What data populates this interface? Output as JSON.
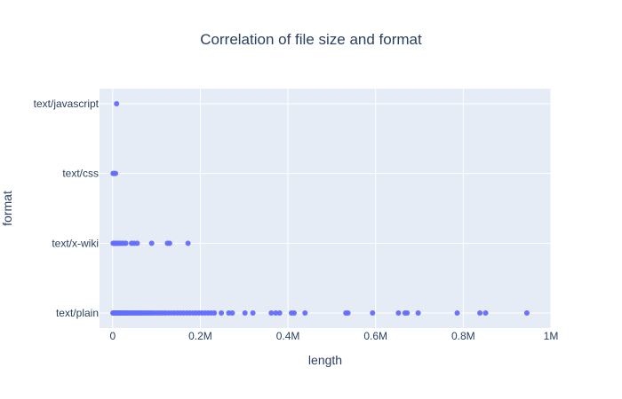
{
  "chart_data": {
    "type": "scatter",
    "title": "Correlation of file size and format",
    "xlabel": "length",
    "ylabel": "format",
    "categories": [
      "text/plain",
      "text/x-wiki",
      "text/css",
      "text/javascript"
    ],
    "xlim": [
      -30000,
      1000000
    ],
    "xticks": [
      {
        "value": 0,
        "label": "0"
      },
      {
        "value": 200000,
        "label": "0.2M"
      },
      {
        "value": 400000,
        "label": "0.4M"
      },
      {
        "value": 600000,
        "label": "0.6M"
      },
      {
        "value": 800000,
        "label": "0.8M"
      },
      {
        "value": 1000000,
        "label": "1M"
      }
    ],
    "grid": true,
    "colors": {
      "marker": "#636efa",
      "plot_bg": "#e5ecf6",
      "grid": "#ffffff",
      "text": "#2a3f5f"
    },
    "series": [
      {
        "points": [
          {
            "x": 700,
            "y": "text/plain"
          },
          {
            "x": 1500,
            "y": "text/plain"
          },
          {
            "x": 2500,
            "y": "text/plain"
          },
          {
            "x": 3500,
            "y": "text/plain"
          },
          {
            "x": 4500,
            "y": "text/plain"
          },
          {
            "x": 5500,
            "y": "text/plain"
          },
          {
            "x": 7000,
            "y": "text/plain"
          },
          {
            "x": 8500,
            "y": "text/plain"
          },
          {
            "x": 10000,
            "y": "text/plain"
          },
          {
            "x": 12000,
            "y": "text/plain"
          },
          {
            "x": 14000,
            "y": "text/plain"
          },
          {
            "x": 16000,
            "y": "text/plain"
          },
          {
            "x": 18000,
            "y": "text/plain"
          },
          {
            "x": 20000,
            "y": "text/plain"
          },
          {
            "x": 23000,
            "y": "text/plain"
          },
          {
            "x": 26000,
            "y": "text/plain"
          },
          {
            "x": 29000,
            "y": "text/plain"
          },
          {
            "x": 32000,
            "y": "text/plain"
          },
          {
            "x": 35000,
            "y": "text/plain"
          },
          {
            "x": 38000,
            "y": "text/plain"
          },
          {
            "x": 42000,
            "y": "text/plain"
          },
          {
            "x": 46000,
            "y": "text/plain"
          },
          {
            "x": 50000,
            "y": "text/plain"
          },
          {
            "x": 54000,
            "y": "text/plain"
          },
          {
            "x": 58000,
            "y": "text/plain"
          },
          {
            "x": 62000,
            "y": "text/plain"
          },
          {
            "x": 66000,
            "y": "text/plain"
          },
          {
            "x": 70000,
            "y": "text/plain"
          },
          {
            "x": 75000,
            "y": "text/plain"
          },
          {
            "x": 80000,
            "y": "text/plain"
          },
          {
            "x": 85000,
            "y": "text/plain"
          },
          {
            "x": 90000,
            "y": "text/plain"
          },
          {
            "x": 96000,
            "y": "text/plain"
          },
          {
            "x": 102000,
            "y": "text/plain"
          },
          {
            "x": 108000,
            "y": "text/plain"
          },
          {
            "x": 114000,
            "y": "text/plain"
          },
          {
            "x": 120000,
            "y": "text/plain"
          },
          {
            "x": 127000,
            "y": "text/plain"
          },
          {
            "x": 134000,
            "y": "text/plain"
          },
          {
            "x": 141000,
            "y": "text/plain"
          },
          {
            "x": 148000,
            "y": "text/plain"
          },
          {
            "x": 155000,
            "y": "text/plain"
          },
          {
            "x": 162000,
            "y": "text/plain"
          },
          {
            "x": 169000,
            "y": "text/plain"
          },
          {
            "x": 176000,
            "y": "text/plain"
          },
          {
            "x": 183000,
            "y": "text/plain"
          },
          {
            "x": 190000,
            "y": "text/plain"
          },
          {
            "x": 197000,
            "y": "text/plain"
          },
          {
            "x": 204000,
            "y": "text/plain"
          },
          {
            "x": 211000,
            "y": "text/plain"
          },
          {
            "x": 218000,
            "y": "text/plain"
          },
          {
            "x": 225000,
            "y": "text/plain"
          },
          {
            "x": 232000,
            "y": "text/plain"
          },
          {
            "x": 248000,
            "y": "text/plain"
          },
          {
            "x": 265000,
            "y": "text/plain"
          },
          {
            "x": 273000,
            "y": "text/plain"
          },
          {
            "x": 302000,
            "y": "text/plain"
          },
          {
            "x": 320000,
            "y": "text/plain"
          },
          {
            "x": 362000,
            "y": "text/plain"
          },
          {
            "x": 372000,
            "y": "text/plain"
          },
          {
            "x": 381000,
            "y": "text/plain"
          },
          {
            "x": 408000,
            "y": "text/plain"
          },
          {
            "x": 414000,
            "y": "text/plain"
          },
          {
            "x": 439000,
            "y": "text/plain"
          },
          {
            "x": 532000,
            "y": "text/plain"
          },
          {
            "x": 537000,
            "y": "text/plain"
          },
          {
            "x": 593000,
            "y": "text/plain"
          },
          {
            "x": 652000,
            "y": "text/plain"
          },
          {
            "x": 667000,
            "y": "text/plain"
          },
          {
            "x": 672000,
            "y": "text/plain"
          },
          {
            "x": 697000,
            "y": "text/plain"
          },
          {
            "x": 786000,
            "y": "text/plain"
          },
          {
            "x": 838000,
            "y": "text/plain"
          },
          {
            "x": 851000,
            "y": "text/plain"
          },
          {
            "x": 945000,
            "y": "text/plain"
          },
          {
            "x": 1000,
            "y": "text/x-wiki"
          },
          {
            "x": 3000,
            "y": "text/x-wiki"
          },
          {
            "x": 5000,
            "y": "text/x-wiki"
          },
          {
            "x": 8000,
            "y": "text/x-wiki"
          },
          {
            "x": 11000,
            "y": "text/x-wiki"
          },
          {
            "x": 14000,
            "y": "text/x-wiki"
          },
          {
            "x": 17000,
            "y": "text/x-wiki"
          },
          {
            "x": 21000,
            "y": "text/x-wiki"
          },
          {
            "x": 25000,
            "y": "text/x-wiki"
          },
          {
            "x": 30000,
            "y": "text/x-wiki"
          },
          {
            "x": 43000,
            "y": "text/x-wiki"
          },
          {
            "x": 49000,
            "y": "text/x-wiki"
          },
          {
            "x": 56000,
            "y": "text/x-wiki"
          },
          {
            "x": 89000,
            "y": "text/x-wiki"
          },
          {
            "x": 125000,
            "y": "text/x-wiki"
          },
          {
            "x": 130000,
            "y": "text/x-wiki"
          },
          {
            "x": 172000,
            "y": "text/x-wiki"
          },
          {
            "x": 1000,
            "y": "text/css"
          },
          {
            "x": 3500,
            "y": "text/css"
          },
          {
            "x": 6500,
            "y": "text/css"
          },
          {
            "x": 9000,
            "y": "text/javascript"
          }
        ]
      }
    ]
  }
}
